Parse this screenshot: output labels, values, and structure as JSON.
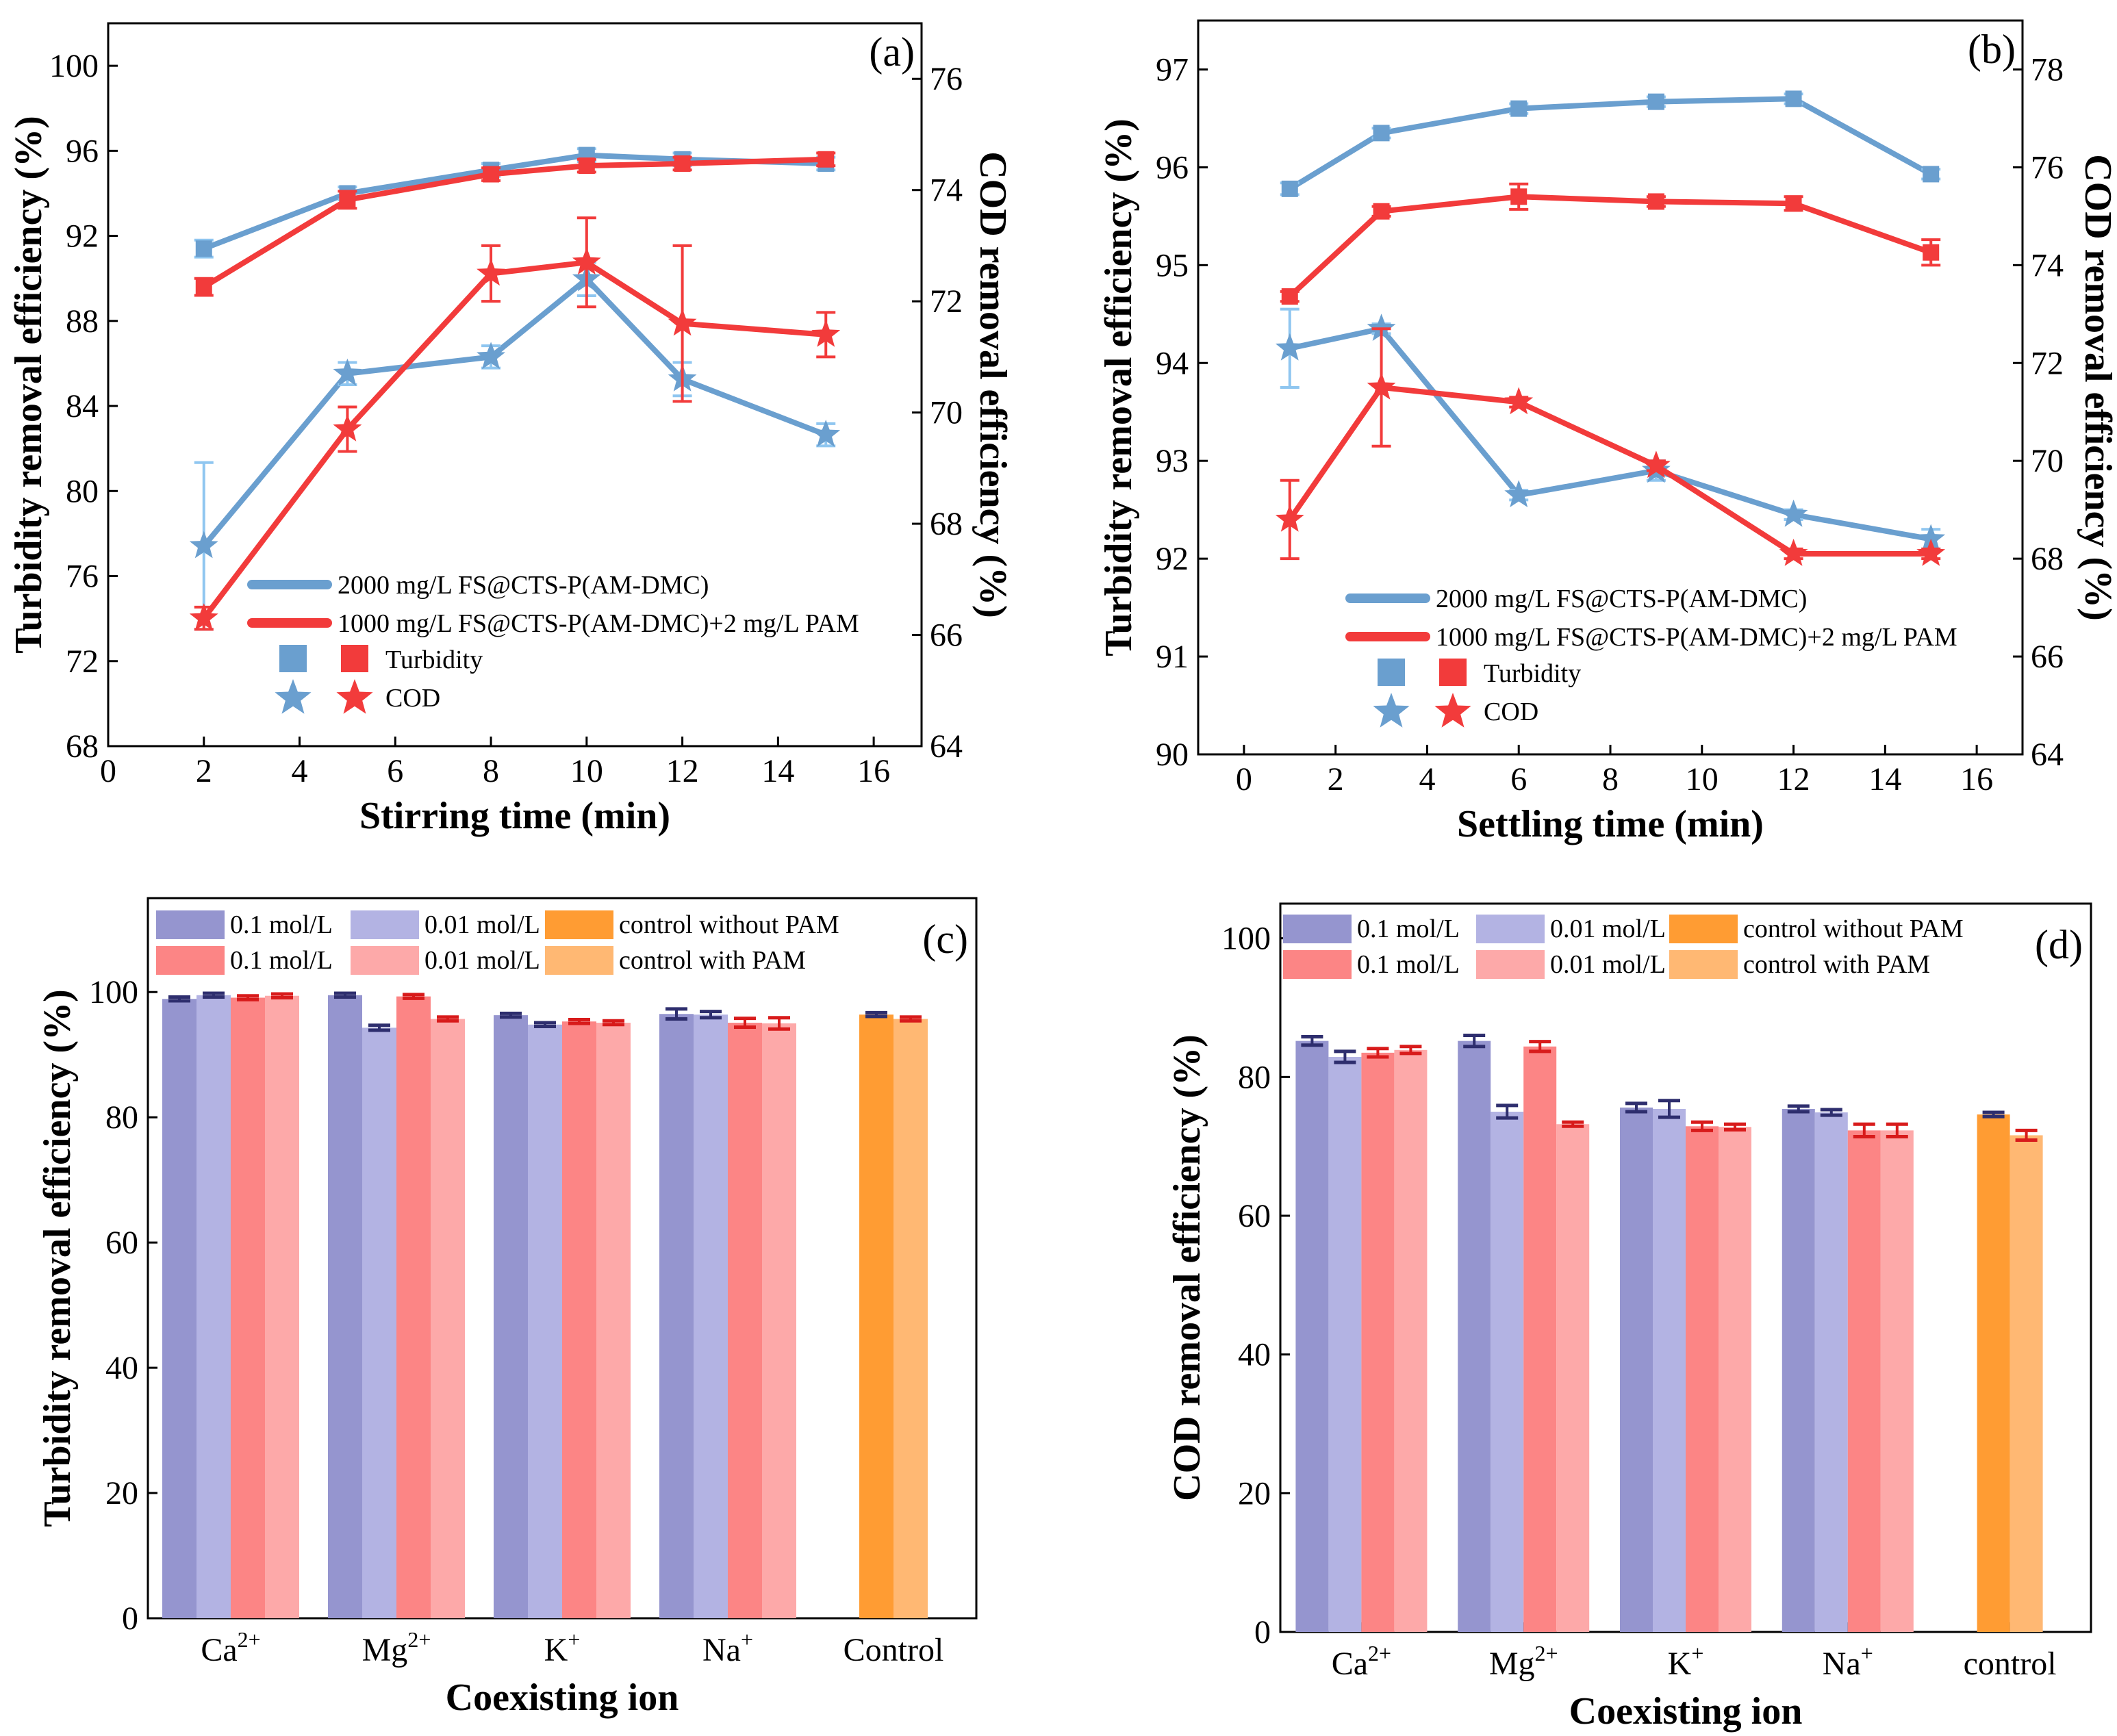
{
  "colors": {
    "blue_line": "#6a9fcf",
    "blue_err": "#8fc6f0",
    "red_line": "#f23b3b",
    "purple_dark": "#9595cf",
    "purple_light": "#b3b3e3",
    "red_dark": "#fc8585",
    "red_light": "#fda9a9",
    "orange_dark": "#ff9c33",
    "orange_light": "#ffb873",
    "err_navy": "#2e2e6e",
    "err_red": "#d81b1b"
  },
  "chart_data": [
    {
      "type": "line",
      "panel_label": "(a)",
      "xlabel": "Stirring time (min)",
      "ylabel_left": "Turbidity removal efficiency (%)",
      "ylabel_right": "COD removal efficiency (%)",
      "xlim": [
        0,
        17
      ],
      "ylim_left": [
        68,
        102
      ],
      "ylim_right": [
        64,
        77
      ],
      "xticks": [
        "0",
        "2",
        "4",
        "6",
        "8",
        "10",
        "12",
        "14",
        "16"
      ],
      "yticks_left": [
        "68",
        "72",
        "76",
        "80",
        "84",
        "88",
        "92",
        "96",
        "100"
      ],
      "yticks_right": [
        "64",
        "66",
        "68",
        "70",
        "72",
        "74",
        "76"
      ],
      "x": [
        2,
        5,
        8,
        10,
        12,
        15
      ],
      "series": [
        {
          "name": "2000 mg/L FS@CTS-P(AM-DMC)",
          "metric": "Turbidity",
          "axis": "left",
          "values": [
            91.4,
            94.0,
            95.1,
            95.8,
            95.6,
            95.4
          ],
          "errors": [
            0.4,
            0.3,
            0.3,
            0.3,
            0.3,
            0.3
          ]
        },
        {
          "name": "1000 mg/L FS@CTS-P(AM-DMC)+2 mg/L PAM",
          "metric": "Turbidity",
          "axis": "left",
          "values": [
            89.6,
            93.7,
            94.9,
            95.3,
            95.4,
            95.6
          ],
          "errors": [
            0.4,
            0.4,
            0.3,
            0.3,
            0.3,
            0.3
          ]
        },
        {
          "name": "2000 mg/L FS@CTS-P(AM-DMC)",
          "metric": "COD",
          "axis": "right",
          "values": [
            67.6,
            70.7,
            71.0,
            72.4,
            70.6,
            69.6
          ],
          "errors": [
            1.5,
            0.2,
            0.2,
            0.3,
            0.3,
            0.2
          ]
        },
        {
          "name": "1000 mg/L FS@CTS-P(AM-DMC)+2 mg/L PAM",
          "metric": "COD",
          "axis": "right",
          "values": [
            66.3,
            69.7,
            72.5,
            72.7,
            71.6,
            71.4
          ],
          "errors": [
            0.2,
            0.4,
            0.5,
            0.8,
            1.4,
            0.4
          ]
        }
      ],
      "legend": {
        "line1": "2000 mg/L FS@CTS-P(AM-DMC)",
        "line2": "1000 mg/L FS@CTS-P(AM-DMC)+2 mg/L PAM",
        "turbidity": "Turbidity",
        "cod": "COD"
      }
    },
    {
      "type": "line",
      "panel_label": "(b)",
      "xlabel": "Settling time (min)",
      "ylabel_left": "Turbidity removal efficiency (%)",
      "ylabel_right": "COD removal efficiency (%)",
      "xlim": [
        -1,
        17
      ],
      "ylim_left": [
        90,
        97.5
      ],
      "ylim_right": [
        64,
        79
      ],
      "xticks": [
        "0",
        "2",
        "4",
        "6",
        "8",
        "10",
        "12",
        "14",
        "16"
      ],
      "yticks_left": [
        "90",
        "91",
        "92",
        "93",
        "94",
        "95",
        "96",
        "97"
      ],
      "yticks_right": [
        "64",
        "66",
        "68",
        "70",
        "72",
        "74",
        "76",
        "78"
      ],
      "x": [
        1,
        3,
        6,
        9,
        12,
        15
      ],
      "series": [
        {
          "name": "2000 mg/L FS@CTS-P(AM-DMC)",
          "metric": "Turbidity",
          "axis": "left",
          "values": [
            95.78,
            96.35,
            96.6,
            96.67,
            96.7,
            95.93
          ],
          "errors": [
            0.06,
            0.05,
            0.05,
            0.05,
            0.05,
            0.05
          ]
        },
        {
          "name": "1000 mg/L FS@CTS-P(AM-DMC)+2 mg/L PAM",
          "metric": "Turbidity",
          "axis": "left",
          "values": [
            94.68,
            95.55,
            95.7,
            95.65,
            95.63,
            95.13
          ],
          "errors": [
            0.05,
            0.05,
            0.13,
            0.05,
            0.07,
            0.13
          ]
        },
        {
          "name": "2000 mg/L FS@CTS-P(AM-DMC)",
          "metric": "COD",
          "axis": "right",
          "values": [
            72.3,
            72.7,
            69.3,
            69.8,
            68.9,
            68.4
          ],
          "errors": [
            0.8,
            0.1,
            0.1,
            0.2,
            0.1,
            0.2
          ]
        },
        {
          "name": "1000 mg/L FS@CTS-P(AM-DMC)+2 mg/L PAM",
          "metric": "COD",
          "axis": "right",
          "values": [
            68.8,
            71.5,
            71.2,
            69.9,
            68.1,
            68.1
          ],
          "errors": [
            0.8,
            1.2,
            0.1,
            0.1,
            0.1,
            0.1
          ]
        }
      ],
      "legend": {
        "line1": "2000 mg/L FS@CTS-P(AM-DMC)",
        "line2": "1000 mg/L FS@CTS-P(AM-DMC)+2 mg/L PAM",
        "turbidity": "Turbidity",
        "cod": "COD"
      }
    },
    {
      "type": "bar",
      "panel_label": "(c)",
      "xlabel": "Coexisting ion",
      "ylabel": "Turbidity removal efficiency (%)",
      "ylim": [
        0,
        115
      ],
      "yticks": [
        "0",
        "20",
        "40",
        "60",
        "80",
        "100"
      ],
      "categories": [
        {
          "base": "Ca",
          "sup": "2+"
        },
        {
          "base": "Mg",
          "sup": "2+"
        },
        {
          "base": "K",
          "sup": "+"
        },
        {
          "base": "Na",
          "sup": "+"
        },
        {
          "base": "Control",
          "sup": ""
        }
      ],
      "series": [
        {
          "name": "0.1 mol/L",
          "color_key": "purple_dark",
          "err_key": "err_navy",
          "values": [
            98.9,
            99.5,
            96.3,
            96.5,
            null
          ],
          "errors": [
            0.3,
            0.3,
            0.3,
            0.8,
            null
          ]
        },
        {
          "name": "0.01 mol/L",
          "color_key": "purple_light",
          "err_key": "err_navy",
          "values": [
            99.5,
            94.3,
            94.8,
            96.4,
            null
          ],
          "errors": [
            0.3,
            0.4,
            0.3,
            0.5,
            null
          ]
        },
        {
          "name": "0.1 mol/L",
          "color_key": "red_dark",
          "err_key": "err_red",
          "values": [
            99.1,
            99.3,
            95.3,
            95.1,
            null
          ],
          "errors": [
            0.3,
            0.3,
            0.3,
            0.7,
            null
          ]
        },
        {
          "name": "0.01 mol/L",
          "color_key": "red_light",
          "err_key": "err_red",
          "values": [
            99.4,
            95.7,
            95.1,
            95.0,
            null
          ],
          "errors": [
            0.3,
            0.3,
            0.3,
            0.9,
            null
          ]
        },
        {
          "name": "control without PAM",
          "color_key": "orange_dark",
          "err_key": "err_navy",
          "values": [
            null,
            null,
            null,
            null,
            96.4
          ],
          "errors": [
            null,
            null,
            null,
            null,
            0.3
          ]
        },
        {
          "name": "control with      PAM",
          "color_key": "orange_light",
          "err_key": "err_red",
          "values": [
            null,
            null,
            null,
            null,
            95.7
          ],
          "errors": [
            null,
            null,
            null,
            null,
            0.3
          ]
        }
      ]
    },
    {
      "type": "bar",
      "panel_label": "(d)",
      "xlabel": "Coexisting ion",
      "ylabel": "COD removal efficiency (%)",
      "ylim": [
        0,
        105
      ],
      "yticks": [
        "0",
        "20",
        "40",
        "60",
        "80",
        "100"
      ],
      "categories": [
        {
          "base": "Ca",
          "sup": "2+"
        },
        {
          "base": "Mg",
          "sup": "2+"
        },
        {
          "base": "K",
          "sup": "+"
        },
        {
          "base": "Na",
          "sup": "+"
        },
        {
          "base": "control",
          "sup": ""
        }
      ],
      "series": [
        {
          "name": "0.1 mol/L",
          "color_key": "purple_dark",
          "err_key": "err_navy",
          "values": [
            85.2,
            85.2,
            75.6,
            75.4,
            null
          ],
          "errors": [
            0.6,
            0.8,
            0.6,
            0.4,
            null
          ]
        },
        {
          "name": "0.01 mol/L",
          "color_key": "purple_light",
          "err_key": "err_navy",
          "values": [
            82.9,
            75.0,
            75.4,
            74.9,
            null
          ],
          "errors": [
            0.8,
            0.9,
            1.2,
            0.4,
            null
          ]
        },
        {
          "name": "0.1 mol/L",
          "color_key": "red_dark",
          "err_key": "err_red",
          "values": [
            83.5,
            84.4,
            72.9,
            72.3,
            null
          ],
          "errors": [
            0.6,
            0.7,
            0.6,
            0.9,
            null
          ]
        },
        {
          "name": "0.01 mol/L",
          "color_key": "red_light",
          "err_key": "err_red",
          "values": [
            83.9,
            73.2,
            72.8,
            72.3,
            null
          ],
          "errors": [
            0.5,
            0.3,
            0.4,
            0.9,
            null
          ]
        },
        {
          "name": "control without PAM",
          "color_key": "orange_dark",
          "err_key": "err_navy",
          "values": [
            null,
            null,
            null,
            null,
            74.6
          ],
          "errors": [
            null,
            null,
            null,
            null,
            0.3
          ]
        },
        {
          "name": "control with      PAM",
          "color_key": "orange_light",
          "err_key": "err_red",
          "values": [
            null,
            null,
            null,
            null,
            71.6
          ],
          "errors": [
            null,
            null,
            null,
            null,
            0.7
          ]
        }
      ]
    }
  ]
}
